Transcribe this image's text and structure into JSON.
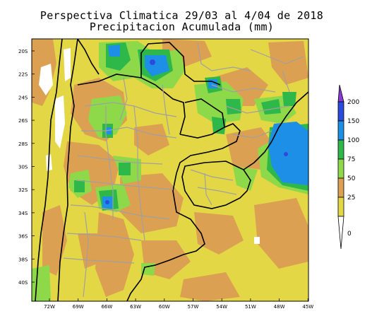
{
  "title": {
    "line1": "Perspectiva Climatica 29/03 al 4/04 de 2018",
    "line2": "Precipitacion Acumulada (mm)"
  },
  "map": {
    "lat_labels": [
      "20S",
      "22S",
      "24S",
      "26S",
      "28S",
      "30S",
      "32S",
      "34S",
      "36S",
      "38S",
      "40S"
    ],
    "lon_labels": [
      "72W",
      "69W",
      "66W",
      "63W",
      "60W",
      "57W",
      "54W",
      "51W",
      "48W",
      "45W"
    ]
  },
  "colorbar": {
    "levels": [
      "200",
      "150",
      "100",
      "75",
      "50",
      "25",
      "0"
    ],
    "colors": {
      "0-25": "#e4d746",
      "25-50": "#dca052",
      "50-75": "#8ed94a",
      "75-100": "#2eb84a",
      "100-150": "#1e8fe6",
      "150-200": "#2a4bdc",
      "200+": "#8a3ad0",
      "below-0": "#ffffff"
    }
  },
  "map_colors": {
    "land_base": "#e4d746",
    "ocean_base": "#e4d746",
    "borders": "#000000",
    "provinces": "#a0a0a0",
    "no_data": "#ffffff"
  }
}
